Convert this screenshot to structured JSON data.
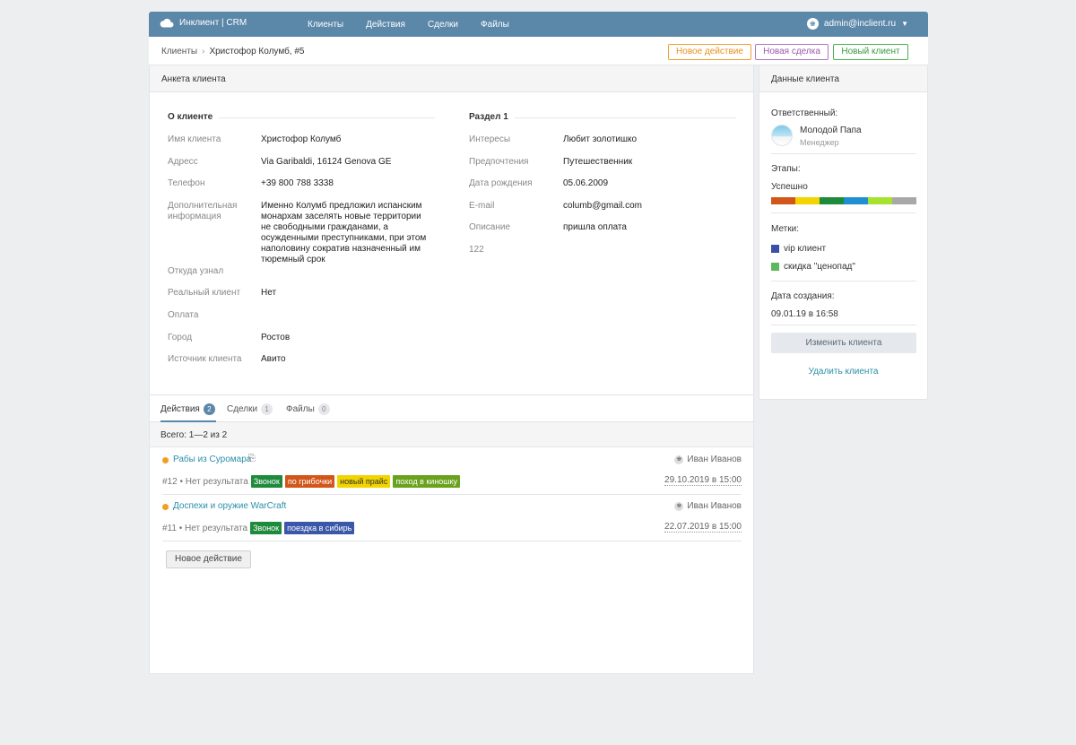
{
  "app": {
    "title": "Инклиент | CRM"
  },
  "nav": [
    "Клиенты",
    "Действия",
    "Сделки",
    "Файлы"
  ],
  "user": {
    "email": "admin@inclient.ru"
  },
  "breadcrumb": {
    "root": "Клиенты",
    "current": "Христофор Колумб, #5"
  },
  "header_buttons": {
    "new_action": "Новое действие",
    "new_deal": "Новая сделка",
    "new_client": "Новый клиент"
  },
  "profile": {
    "title": "Анкета клиента",
    "about_title": "О клиенте",
    "section1_title": "Раздел 1",
    "left": [
      {
        "label": "Имя клиента",
        "value": "Христофор Колумб"
      },
      {
        "label": "Адресс",
        "value": "Via Garibaldi, 16124 Genova GE"
      },
      {
        "label": "Телефон",
        "value": "+39 800 788 3338"
      },
      {
        "label": "Дополнительная информация",
        "value": "Именно Колумб предложил испанским монархам заселять новые территории не свободными гражданами, а осужденными преступниками, при этом наполовину сократив назначенный им тюремный срок"
      },
      {
        "label": "Откуда узнал",
        "value": ""
      },
      {
        "label": "Реальный клиент",
        "value": "Нет"
      },
      {
        "label": "Оплата",
        "value": ""
      },
      {
        "label": "Город",
        "value": "Ростов"
      },
      {
        "label": "Источник клиента",
        "value": "Авито"
      }
    ],
    "right": [
      {
        "label": "Интересы",
        "value": "Любит золотишко"
      },
      {
        "label": "Предпочтения",
        "value": "Путешественник"
      },
      {
        "label": "Дата рождения",
        "value": "05.06.2009"
      },
      {
        "label": "E-mail",
        "value": "columb@gmail.com"
      },
      {
        "label": "Описание",
        "value": "пришла оплата"
      },
      {
        "label": "122",
        "value": ""
      }
    ]
  },
  "tabs": [
    {
      "label": "Действия",
      "count": "2"
    },
    {
      "label": "Сделки",
      "count": "1"
    },
    {
      "label": "Файлы",
      "count": "0"
    }
  ],
  "total": "Всего: 1—2 из 2",
  "actions": [
    {
      "title": "Рабы из Суромара",
      "user": "Иван Иванов",
      "meta": "#12 • Нет результата",
      "tags": [
        {
          "label": "Звонок",
          "color": "#1e8a3c"
        },
        {
          "label": "по грибочки",
          "color": "#d2561a"
        },
        {
          "label": "новый прайс",
          "color": "#f2d400"
        },
        {
          "label": "поход в киношку",
          "color": "#6aa11d"
        }
      ],
      "date": "29.10.2019 в 15:00"
    },
    {
      "title": "Доспехи и оружие WarCraft",
      "user": "Иван Иванов",
      "meta": "#11 • Нет результата",
      "tags": [
        {
          "label": "Звонок",
          "color": "#1e8a3c"
        },
        {
          "label": "поездка в сибирь",
          "color": "#3b57a8"
        }
      ],
      "date": "22.07.2019 в 15:00"
    }
  ],
  "new_action_button": "Новое действие",
  "sidebar": {
    "title": "Данные клиента",
    "responsible_label": "Ответственный:",
    "responsible_name": "Молодой Папа",
    "responsible_role": "Менеджер",
    "stages_label": "Этапы:",
    "stage_value": "Успешно",
    "stage_colors": [
      "#d2561a",
      "#f2d400",
      "#1e8a3c",
      "#1f8fd1",
      "#a6e22e",
      "#a8a8a8"
    ],
    "marks_label": "Метки:",
    "marks": [
      {
        "label": "vip клиент",
        "color": "#3b4fa8"
      },
      {
        "label": "скидка \"ценопад\"",
        "color": "#5cb85c"
      }
    ],
    "created_label": "Дата создания:",
    "created_value": "09.01.19 в 16:58",
    "edit_button": "Изменить клиента",
    "delete_link": "Удалить клиента"
  }
}
